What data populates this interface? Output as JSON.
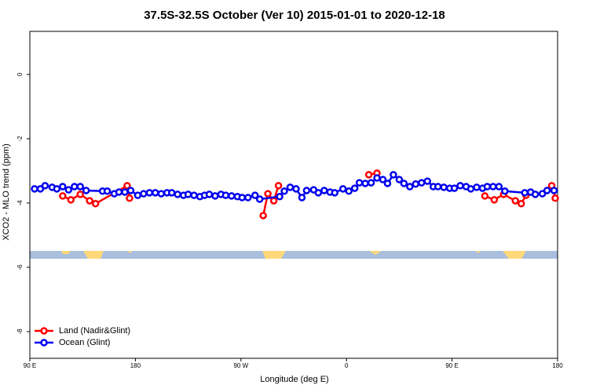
{
  "chart_data": {
    "type": "line",
    "title": "37.5S-32.5S October (Ver 10)   2015-01-01 to 2020-12-18",
    "xlabel": "Longitude (deg E)",
    "ylabel": "XCO2 - MLO trend (ppm)",
    "xlim": [
      90,
      540
    ],
    "xticks": [
      {
        "value": 90,
        "label": "90 E"
      },
      {
        "value": 180,
        "label": "180"
      },
      {
        "value": 270,
        "label": "90 W"
      },
      {
        "value": 360,
        "label": "0"
      },
      {
        "value": 450,
        "label": "90 E"
      },
      {
        "value": 540,
        "label": "180"
      }
    ],
    "ylim": [
      -8.83,
      1.34
    ],
    "yticks": [
      0,
      -2,
      -4,
      -6,
      -8
    ],
    "legend": "bottom-left",
    "series": [
      {
        "name": "Land (Nadir&Glint)",
        "color": "#ff0000",
        "x": [
          118,
          125,
          133,
          141,
          146,
          173,
          175,
          250,
          289,
          293,
          298,
          302,
          340,
          379,
          386,
          430,
          478,
          486,
          494,
          504,
          509,
          513,
          524,
          535,
          538
        ],
        "values": [
          -3.78,
          -3.9,
          -3.73,
          -3.93,
          -4.02,
          -3.46,
          -3.85,
          null,
          -4.39,
          -3.71,
          -3.93,
          -3.46,
          null,
          -3.12,
          -3.07,
          null,
          -3.78,
          -3.9,
          -3.73,
          -3.93,
          -4.02,
          -3.76,
          null,
          -3.46,
          -3.85
        ]
      },
      {
        "name": "Ocean (Glint)",
        "color": "#0000ee",
        "x": [
          94,
          99,
          103,
          109,
          113,
          118,
          123,
          128,
          133,
          138,
          152,
          156,
          162,
          166,
          171,
          176,
          182,
          187,
          192,
          197,
          202,
          207,
          211,
          216,
          221,
          225,
          230,
          235,
          239,
          243,
          248,
          253,
          257,
          262,
          267,
          271,
          276,
          282,
          286,
          303,
          307,
          312,
          317,
          322,
          326,
          332,
          336,
          341,
          346,
          350,
          357,
          362,
          367,
          371,
          376,
          381,
          386,
          391,
          395,
          400,
          405,
          409,
          414,
          419,
          424,
          429,
          434,
          438,
          443,
          448,
          452,
          457,
          462,
          466,
          471,
          476,
          480,
          485,
          490,
          495,
          512,
          517,
          521,
          527,
          531,
          537
        ],
        "values": [
          -3.56,
          -3.56,
          -3.46,
          -3.51,
          -3.56,
          -3.49,
          -3.59,
          -3.49,
          -3.49,
          -3.61,
          -3.63,
          -3.63,
          -3.71,
          -3.66,
          -3.66,
          -3.61,
          -3.76,
          -3.71,
          -3.68,
          -3.68,
          -3.71,
          -3.68,
          -3.68,
          -3.73,
          -3.76,
          -3.73,
          -3.76,
          -3.8,
          -3.76,
          -3.73,
          -3.78,
          -3.73,
          -3.76,
          -3.78,
          -3.8,
          -3.83,
          -3.83,
          -3.76,
          -3.88,
          -3.8,
          -3.63,
          -3.51,
          -3.56,
          -3.83,
          -3.61,
          -3.59,
          -3.68,
          -3.61,
          -3.66,
          -3.68,
          -3.56,
          -3.63,
          -3.54,
          -3.37,
          -3.39,
          -3.37,
          -3.22,
          -3.27,
          -3.39,
          -3.12,
          -3.27,
          -3.39,
          -3.49,
          -3.41,
          -3.37,
          -3.32,
          -3.49,
          -3.49,
          -3.51,
          -3.54,
          -3.54,
          -3.46,
          -3.49,
          -3.56,
          -3.51,
          -3.54,
          -3.49,
          -3.49,
          -3.49,
          -3.63,
          -3.68,
          -3.66,
          -3.73,
          -3.71,
          -3.61,
          -3.61
        ]
      }
    ]
  }
}
